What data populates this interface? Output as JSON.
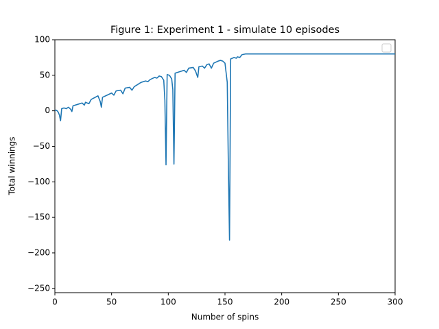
{
  "chart_data": {
    "type": "line",
    "title": "Figure 1: Experiment 1 - simulate 10 episodes",
    "x_label": "Number of spins",
    "y_label": "Total winnings",
    "color": "#1f77b4",
    "x": [
      0,
      1,
      2,
      3,
      4,
      5,
      6,
      8,
      10,
      12,
      14,
      15,
      16,
      20,
      24,
      26,
      27,
      30,
      32,
      38,
      40,
      41,
      42,
      46,
      50,
      52,
      54,
      58,
      60,
      62,
      66,
      68,
      70,
      76,
      80,
      82,
      84,
      88,
      90,
      92,
      94,
      96,
      97,
      98,
      99,
      101,
      103,
      104,
      105,
      106,
      110,
      114,
      116,
      118,
      122,
      124,
      126,
      127,
      130,
      132,
      134,
      136,
      138,
      140,
      144,
      146,
      148,
      150,
      152,
      153,
      154,
      155,
      158,
      160,
      161,
      163,
      165,
      168,
      300
    ],
    "values": [
      0,
      1,
      0,
      -2,
      -6,
      -14,
      3,
      4,
      3,
      5,
      2,
      -1,
      7,
      9,
      11,
      8,
      12,
      10,
      16,
      21,
      13,
      5,
      19,
      22,
      25,
      22,
      28,
      29,
      24,
      32,
      33,
      29,
      34,
      40,
      42,
      41,
      44,
      47,
      46,
      49,
      48,
      43,
      15,
      -76,
      51,
      50,
      45,
      30,
      -75,
      53,
      55,
      57,
      54,
      60,
      61,
      56,
      47,
      62,
      63,
      60,
      65,
      66,
      60,
      67,
      70,
      71,
      70,
      67,
      40,
      -80,
      -182,
      73,
      75,
      74,
      76,
      75,
      79,
      80,
      80
    ],
    "xlim": [
      0,
      300
    ],
    "ylim": [
      -256,
      100
    ],
    "xticks": [
      0,
      50,
      100,
      150,
      200,
      250,
      300
    ],
    "yticks": [
      100,
      50,
      0,
      {
        "value": -50,
        "label": "−50"
      },
      {
        "value": -100,
        "label": "−100"
      },
      {
        "value": -150,
        "label": "−150"
      },
      {
        "value": -200,
        "label": "−200"
      },
      {
        "value": -250,
        "label": "−250"
      }
    ]
  }
}
